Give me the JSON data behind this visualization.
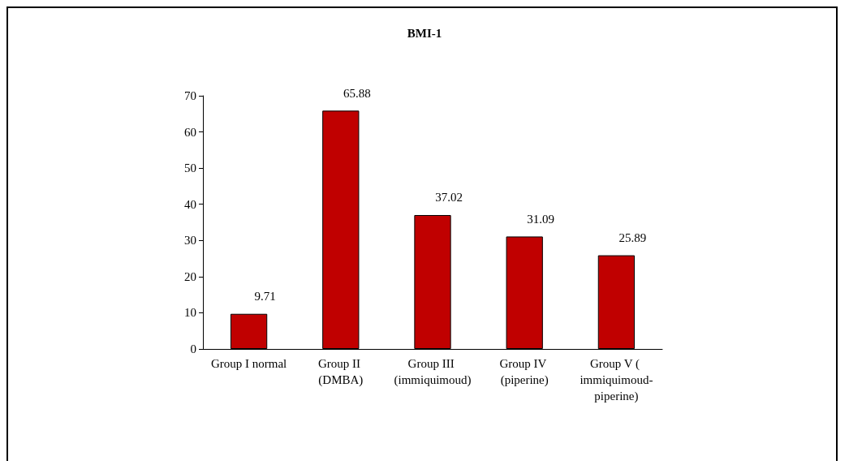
{
  "chart_data": {
    "type": "bar",
    "title": "BMI-1",
    "categories": [
      "Group I normal",
      "Group II (DMBA)",
      "Group III (immiquimoud)",
      "Group IV (piperine)",
      "Group V ( immiquimoud-piperine)"
    ],
    "values": [
      9.71,
      65.88,
      37.02,
      31.09,
      25.89
    ],
    "color": "#c00000",
    "ylim": [
      0,
      70
    ],
    "yticks": [
      0,
      10,
      20,
      30,
      40,
      50,
      60,
      70
    ],
    "data_labels": true
  }
}
